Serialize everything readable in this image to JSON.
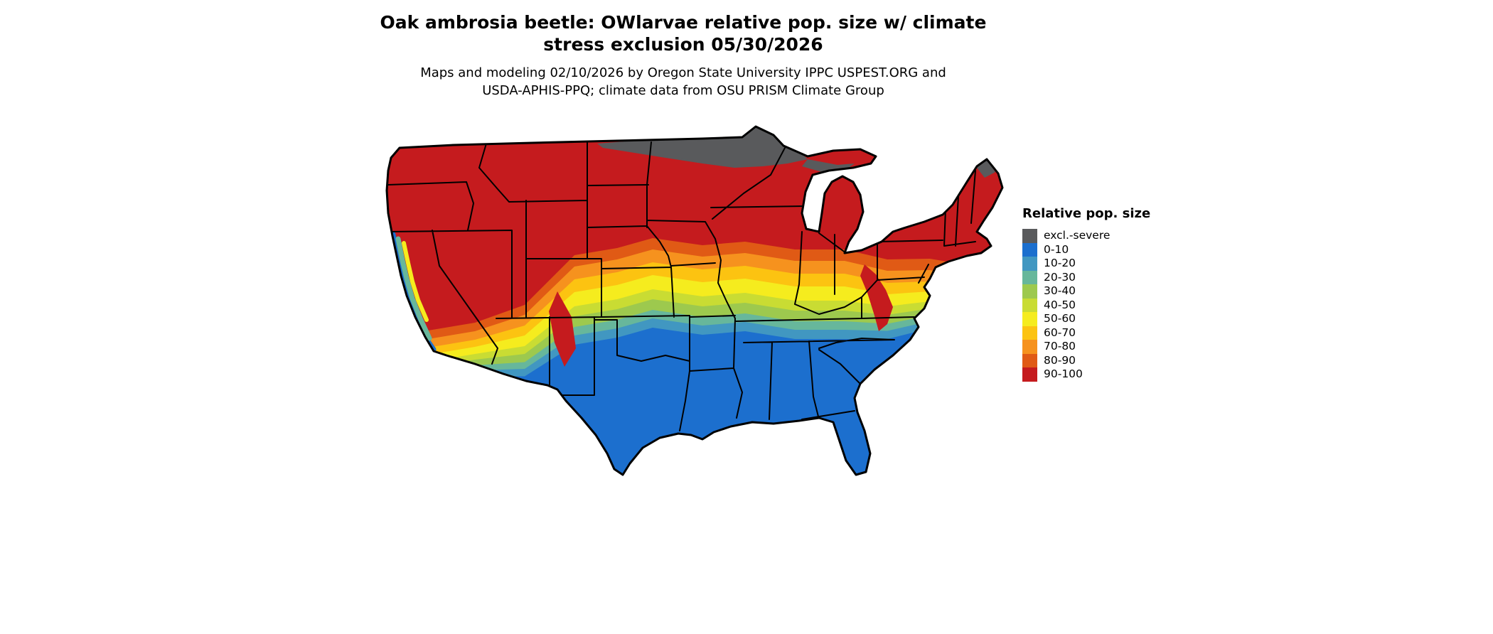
{
  "title": {
    "line1": "Oak ambrosia beetle: OWlarvae relative pop. size w/ climate",
    "line2": "stress exclusion 05/30/2026"
  },
  "subtitle": {
    "line1": "Maps and modeling 02/10/2026 by Oregon State University IPPC USPEST.ORG and",
    "line2": "USDA-APHIS-PPQ; climate data from OSU PRISM Climate Group"
  },
  "legend": {
    "title": "Relative pop. size",
    "items": [
      {
        "label": "excl.-severe",
        "color": "#595A5C"
      },
      {
        "label": "0-10",
        "color": "#1C6FCE"
      },
      {
        "label": "10-20",
        "color": "#4197C1"
      },
      {
        "label": "20-30",
        "color": "#67B79B"
      },
      {
        "label": "30-40",
        "color": "#9DC94E"
      },
      {
        "label": "40-50",
        "color": "#C9DC33"
      },
      {
        "label": "50-60",
        "color": "#F5EC1E"
      },
      {
        "label": "60-70",
        "color": "#FCC311"
      },
      {
        "label": "70-80",
        "color": "#F6921E"
      },
      {
        "label": "80-90",
        "color": "#E05A15"
      },
      {
        "label": "90-100",
        "color": "#C51B1E"
      }
    ]
  }
}
